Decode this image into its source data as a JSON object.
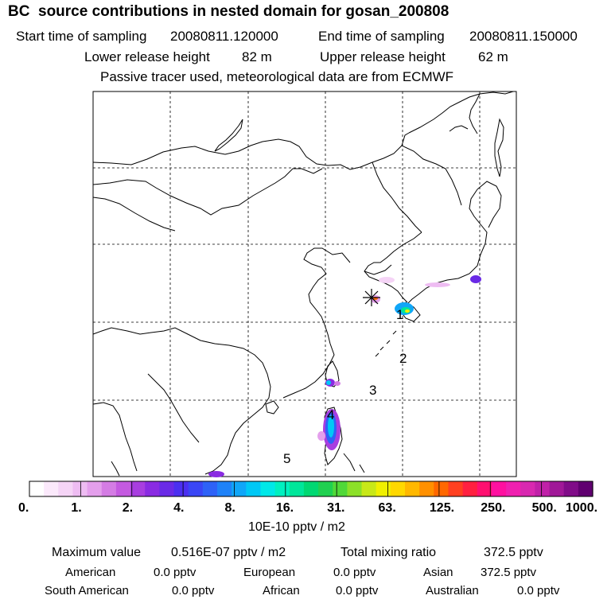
{
  "header": {
    "title": "BC  source contributions in nested domain for gosan_200808",
    "start_label": "Start time of sampling",
    "start_value": "20080811.120000",
    "end_label": "End time of sampling",
    "end_value": "20080811.150000",
    "lower_label": "Lower release height",
    "lower_value": "82 m",
    "upper_label": "Upper release height",
    "upper_value": "62 m",
    "tracer_note": "Passive tracer used, meteorological data are from ECMWF"
  },
  "map": {
    "receptor_marker": "asterisk-marker",
    "trajectory_labels": [
      "1",
      "2",
      "3",
      "4",
      "5"
    ]
  },
  "colorbar": {
    "tick_labels": [
      "0.",
      "1.",
      "2.",
      "4.",
      "8.",
      "16.",
      "31.",
      "63.",
      "125.",
      "250.",
      "500.",
      "1000."
    ],
    "units": "10E-10 pptv / m2",
    "colors": [
      "#ffffff",
      "#fbe9fb",
      "#f5d4f6",
      "#eebcf2",
      "#e49fec",
      "#d47ce4",
      "#c45ae0",
      "#a83ee0",
      "#8a2be2",
      "#6a2ae6",
      "#4b2ff0",
      "#3a46f5",
      "#2e62f7",
      "#1f82f8",
      "#10a6f8",
      "#00c8f5",
      "#00e8e8",
      "#00f0c0",
      "#00e69a",
      "#00d872",
      "#20d050",
      "#50d838",
      "#8ce028",
      "#c8e818",
      "#f0f000",
      "#ffd800",
      "#ffb800",
      "#ff9000",
      "#ff6800",
      "#ff4020",
      "#ff2040",
      "#ff1070",
      "#ff10a0",
      "#f020b0",
      "#d828b0",
      "#c020a8",
      "#a01898",
      "#800c88",
      "#600070"
    ]
  },
  "stats": {
    "max_label": "Maximum value",
    "max_value": "0.516E-07 pptv / m2",
    "total_label": "Total mixing ratio",
    "total_value": "372.5 pptv",
    "american_label": "American",
    "american_value": "0.0 pptv",
    "european_label": "European",
    "european_value": "0.0 pptv",
    "asian_label": "Asian",
    "asian_value": "372.5 pptv",
    "south_american_label": "South American",
    "south_american_value": "0.0 pptv",
    "african_label": "African",
    "african_value": "0.0 pptv",
    "australian_label": "Australian",
    "australian_value": "0.0 pptv"
  }
}
